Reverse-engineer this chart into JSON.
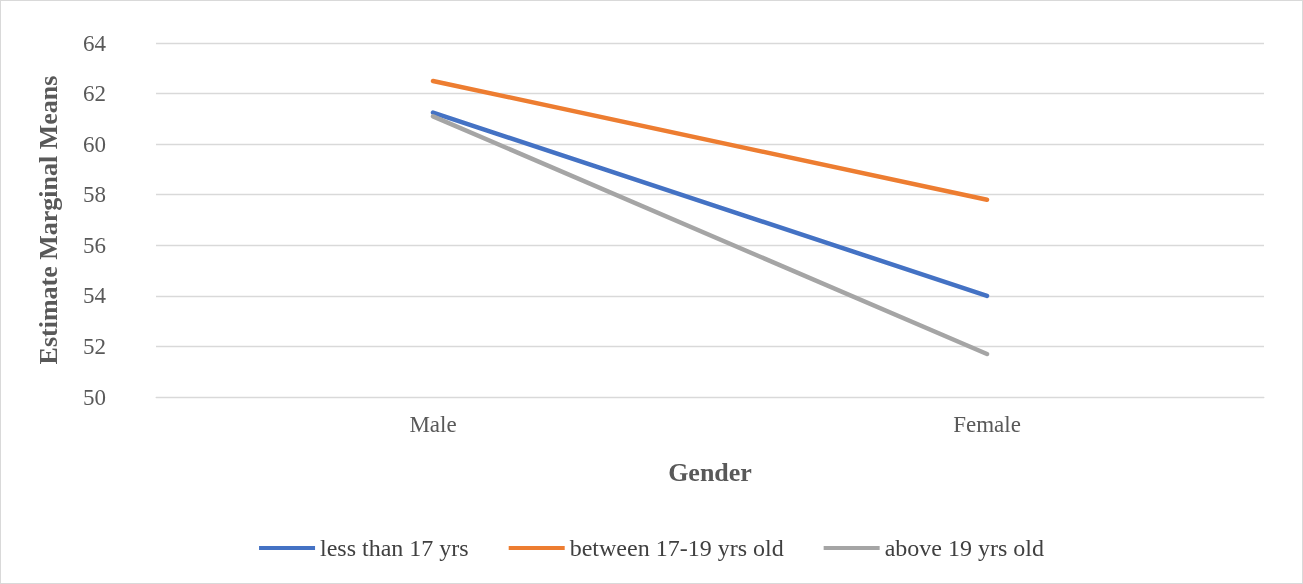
{
  "chart_data": {
    "type": "line",
    "xlabel": "Gender",
    "ylabel": "Estimate Marginal Means",
    "categories": [
      "Male",
      "Female"
    ],
    "series": [
      {
        "name": "less than 17 yrs",
        "color": "#4472c4",
        "values": [
          61.25,
          54.0
        ]
      },
      {
        "name": "between 17-19 yrs old",
        "color": "#ed7d31",
        "values": [
          62.5,
          57.8
        ]
      },
      {
        "name": "above 19 yrs old",
        "color": "#a5a5a5",
        "values": [
          61.1,
          51.7
        ]
      }
    ],
    "ylim": [
      50,
      64
    ],
    "yticks": [
      50,
      52,
      54,
      56,
      58,
      60,
      62,
      64
    ],
    "grid": "y",
    "legend": "bottom",
    "marker": "none",
    "line_style": "solid"
  }
}
